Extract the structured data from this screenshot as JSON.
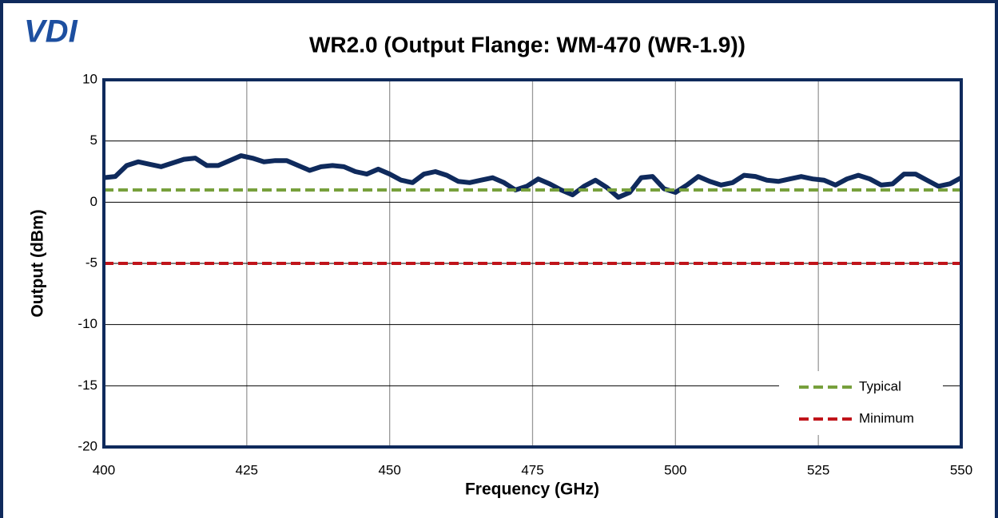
{
  "chart_data": {
    "type": "line",
    "logo": "VDI",
    "title": "WR2.0 (Output Flange: WM-470 (WR-1.9))",
    "x_label": "Frequency (GHz)",
    "y_label": "Output (dBm)",
    "xlim": [
      400,
      550
    ],
    "xticks": [
      400,
      425,
      450,
      475,
      500,
      525,
      550
    ],
    "ylim": [
      -20,
      10
    ],
    "yticks": [
      10,
      5,
      0,
      -5,
      -10,
      -15,
      -20
    ],
    "grid": true,
    "legend": "lower right",
    "series": [
      {
        "color": "#0f2a5c",
        "dash": false,
        "x": [
          400,
          402,
          404,
          406,
          408,
          410,
          412,
          414,
          416,
          418,
          420,
          422,
          424,
          426,
          428,
          430,
          432,
          434,
          436,
          438,
          440,
          442,
          444,
          446,
          448,
          450,
          452,
          454,
          456,
          458,
          460,
          462,
          464,
          466,
          468,
          470,
          472,
          474,
          476,
          478,
          480,
          482,
          484,
          486,
          488,
          490,
          492,
          494,
          496,
          498,
          500,
          502,
          504,
          506,
          508,
          510,
          512,
          514,
          516,
          518,
          520,
          522,
          524,
          526,
          528,
          530,
          532,
          534,
          536,
          538,
          540,
          542,
          544,
          546,
          548,
          550
        ],
        "values": [
          2.0,
          2.1,
          3.0,
          3.3,
          3.1,
          2.9,
          3.2,
          3.5,
          3.6,
          3.0,
          3.0,
          3.4,
          3.8,
          3.6,
          3.3,
          3.4,
          3.4,
          3.0,
          2.6,
          2.9,
          3.0,
          2.9,
          2.5,
          2.3,
          2.7,
          2.3,
          1.8,
          1.6,
          2.3,
          2.5,
          2.2,
          1.7,
          1.6,
          1.8,
          2.0,
          1.6,
          1.0,
          1.3,
          1.9,
          1.5,
          1.0,
          0.6,
          1.3,
          1.8,
          1.2,
          0.4,
          0.8,
          2.0,
          2.1,
          1.1,
          0.8,
          1.4,
          2.1,
          1.7,
          1.4,
          1.6,
          2.2,
          2.1,
          1.8,
          1.7,
          1.9,
          2.1,
          1.9,
          1.8,
          1.4,
          1.9,
          2.2,
          1.9,
          1.4,
          1.5,
          2.3,
          2.3,
          1.8,
          1.3,
          1.5,
          2.0
        ]
      },
      {
        "name": "Typical",
        "color": "#77a03c",
        "dash": true,
        "x": [
          400,
          550
        ],
        "values": [
          1,
          1
        ]
      },
      {
        "name": "Minimum",
        "color": "#c0141a",
        "dash": true,
        "x": [
          400,
          550
        ],
        "values": [
          -5,
          -5
        ]
      }
    ]
  }
}
